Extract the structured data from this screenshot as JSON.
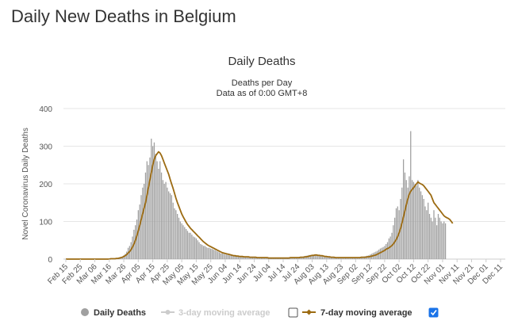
{
  "page": {
    "heading": "Daily New Deaths in Belgium"
  },
  "chart_data": {
    "type": "bar",
    "title": "Daily Deaths",
    "subtitle_lines": [
      "Deaths per Day",
      "Data as of 0:00 GMT+8"
    ],
    "ylabel": "Novel Coronavirus Daily Deaths",
    "xlabel": "",
    "ylim": [
      0,
      400
    ],
    "yticks": [
      0,
      100,
      200,
      300,
      400
    ],
    "x_tick_labels": [
      "Feb 15",
      "Feb 25",
      "Mar 06",
      "Mar 16",
      "Mar 26",
      "Apr 05",
      "Apr 15",
      "Apr 25",
      "May 05",
      "May 15",
      "May 25",
      "Jun 04",
      "Jun 14",
      "Jun 24",
      "Jul 04",
      "Jul 14",
      "Jul 24",
      "Aug 03",
      "Aug 13",
      "Aug 23",
      "Sep 02",
      "Sep 12",
      "Sep 22",
      "Oct 02",
      "Oct 12",
      "Oct 22",
      "Nov 01",
      "Nov 11",
      "Nov 21",
      "Dec 01",
      "Dec 11"
    ],
    "x_range": [
      "Feb 15",
      "Dec 15"
    ],
    "grid": true,
    "series": [
      {
        "name": "Daily Deaths",
        "kind": "bar",
        "color": "#a0a0a0",
        "start_date": "Feb 15",
        "values": [
          0,
          0,
          0,
          0,
          0,
          0,
          0,
          0,
          0,
          0,
          0,
          0,
          0,
          0,
          0,
          0,
          0,
          0,
          0,
          0,
          0,
          0,
          0,
          0,
          0,
          0,
          0,
          0,
          0,
          0,
          1,
          0,
          1,
          1,
          2,
          1,
          3,
          4,
          5,
          6,
          10,
          14,
          20,
          30,
          35,
          45,
          60,
          78,
          90,
          105,
          130,
          145,
          170,
          190,
          200,
          230,
          260,
          250,
          270,
          320,
          300,
          310,
          280,
          260,
          240,
          260,
          230,
          210,
          200,
          205,
          190,
          180,
          175,
          170,
          150,
          135,
          130,
          120,
          110,
          100,
          95,
          90,
          85,
          80,
          75,
          70,
          70,
          65,
          60,
          58,
          55,
          50,
          45,
          40,
          38,
          35,
          35,
          32,
          30,
          30,
          28,
          27,
          25,
          24,
          22,
          20,
          18,
          15,
          15,
          14,
          12,
          12,
          11,
          10,
          10,
          9,
          9,
          8,
          8,
          7,
          7,
          7,
          6,
          6,
          6,
          6,
          5,
          5,
          5,
          5,
          5,
          4,
          4,
          4,
          4,
          4,
          4,
          4,
          4,
          3,
          3,
          3,
          3,
          3,
          3,
          3,
          3,
          3,
          3,
          3,
          3,
          3,
          4,
          4,
          4,
          4,
          4,
          4,
          4,
          5,
          5,
          5,
          5,
          6,
          7,
          8,
          9,
          10,
          11,
          11,
          11,
          11,
          10,
          10,
          9,
          8,
          8,
          7,
          6,
          6,
          5,
          5,
          5,
          4,
          4,
          4,
          4,
          4,
          4,
          4,
          4,
          4,
          4,
          4,
          4,
          4,
          4,
          4,
          4,
          4,
          4,
          5,
          5,
          5,
          6,
          6,
          7,
          8,
          9,
          10,
          12,
          14,
          16,
          18,
          20,
          22,
          25,
          28,
          30,
          32,
          35,
          40,
          45,
          55,
          60,
          70,
          90,
          110,
          135,
          140,
          130,
          160,
          190,
          265,
          230,
          210,
          190,
          220,
          340,
          210,
          205,
          200,
          195,
          210,
          190,
          180,
          170,
          160,
          140,
          130,
          150,
          120,
          110,
          100,
          130,
          110,
          90,
          120,
          110,
          100,
          95,
          100,
          95
        ]
      },
      {
        "name": "3-day moving average",
        "kind": "line",
        "color": "#cccccc",
        "enabled": false
      },
      {
        "name": "7-day moving average",
        "kind": "line",
        "color": "#9c6b12",
        "enabled": true,
        "start_date": "Feb 15",
        "values": [
          0,
          0,
          0,
          0,
          0,
          0,
          0,
          0,
          0,
          0,
          0,
          0,
          0,
          0,
          0,
          0,
          0,
          0,
          0,
          0,
          0,
          0,
          0,
          0,
          0,
          0,
          0,
          0,
          0,
          0,
          0,
          1,
          1,
          1,
          1,
          2,
          2,
          3,
          4,
          5,
          7,
          9,
          12,
          16,
          20,
          25,
          32,
          40,
          50,
          62,
          75,
          90,
          105,
          120,
          135,
          150,
          170,
          190,
          210,
          230,
          250,
          265,
          275,
          280,
          285,
          282,
          275,
          265,
          255,
          245,
          235,
          225,
          212,
          200,
          188,
          175,
          162,
          150,
          140,
          130,
          120,
          112,
          105,
          98,
          92,
          87,
          82,
          78,
          74,
          70,
          66,
          62,
          58,
          54,
          50,
          46,
          43,
          40,
          37,
          35,
          33,
          31,
          29,
          27,
          25,
          23,
          21,
          19,
          17,
          16,
          15,
          14,
          13,
          12,
          11,
          10,
          9,
          9,
          8,
          8,
          7,
          7,
          7,
          6,
          6,
          6,
          6,
          5,
          5,
          5,
          5,
          5,
          4,
          4,
          4,
          4,
          4,
          4,
          4,
          4,
          3,
          3,
          3,
          3,
          3,
          3,
          3,
          3,
          3,
          3,
          3,
          3,
          3,
          3,
          3,
          4,
          4,
          4,
          4,
          4,
          4,
          4,
          5,
          5,
          5,
          6,
          6,
          7,
          8,
          9,
          10,
          10,
          11,
          11,
          10,
          10,
          9,
          9,
          8,
          7,
          7,
          6,
          6,
          5,
          5,
          5,
          4,
          4,
          4,
          4,
          4,
          4,
          4,
          4,
          4,
          4,
          4,
          4,
          4,
          4,
          4,
          4,
          4,
          4,
          5,
          5,
          5,
          5,
          6,
          6,
          7,
          8,
          9,
          10,
          11,
          13,
          15,
          17,
          19,
          21,
          23,
          26,
          28,
          30,
          33,
          36,
          40,
          46,
          52,
          60,
          70,
          82,
          96,
          112,
          128,
          145,
          160,
          172,
          180,
          185,
          190,
          195,
          200,
          205,
          202,
          200,
          198,
          195,
          190,
          185,
          180,
          175,
          170,
          160,
          150,
          145,
          140,
          135,
          130,
          125,
          120,
          115,
          112,
          110,
          108,
          105,
          100,
          95
        ]
      }
    ],
    "legend": {
      "placement": "bottom",
      "items": [
        "Daily Deaths",
        "3-day moving average",
        "7-day moving average"
      ]
    }
  }
}
